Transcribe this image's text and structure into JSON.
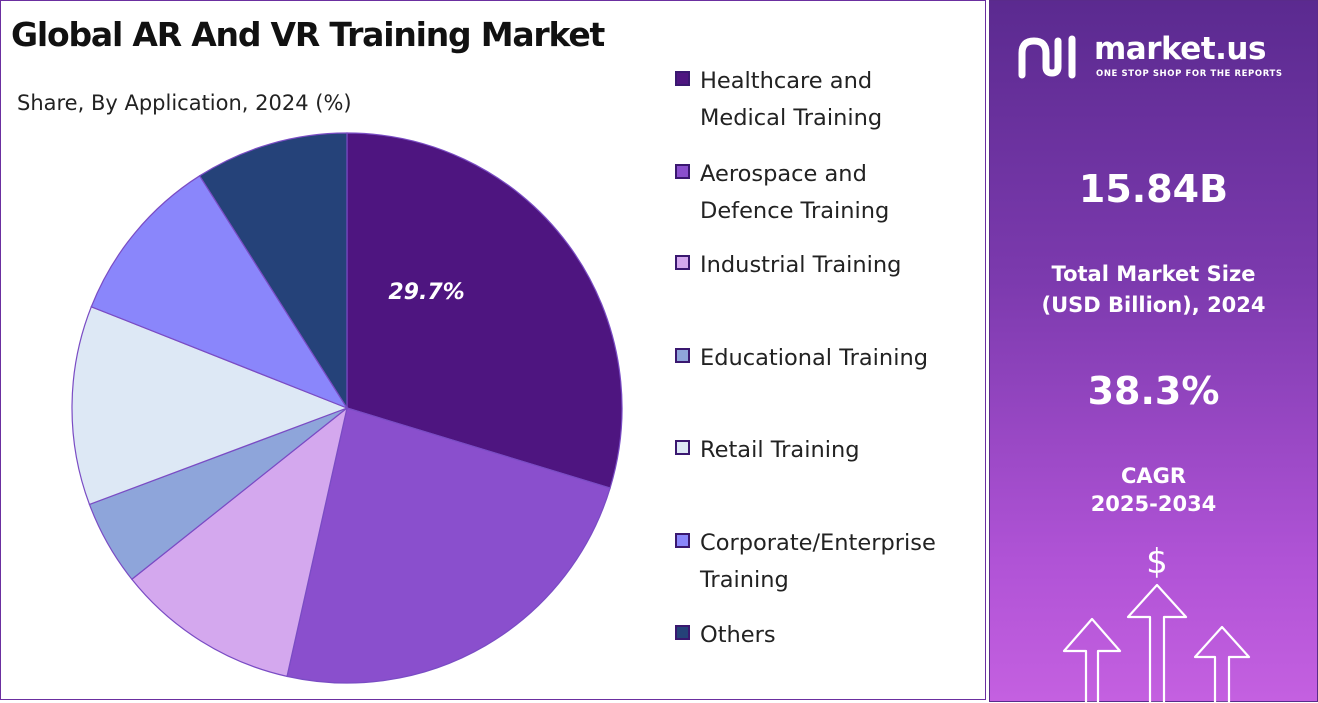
{
  "title": "Global AR And VR Training Market",
  "subtitle": "Share, By Application, 2024 (%)",
  "chart_data": {
    "type": "pie",
    "title": "Global AR And VR Training Market",
    "subtitle": "Share, By Application, 2024 (%)",
    "categories": [
      "Healthcare and Medical Training",
      "Aerospace and Defence Training",
      "Industrial Training",
      "Educational Training",
      "Retail Training",
      "Corporate/Enterprise Training",
      "Others"
    ],
    "values": [
      29.7,
      23.8,
      10.8,
      5.0,
      11.7,
      10.0,
      9.0
    ],
    "colors": [
      "#4e1580",
      "#8a4fcd",
      "#d4a8ee",
      "#8ea5da",
      "#dde8f5",
      "#8a86fb",
      "#254279"
    ],
    "data_labels": [
      "29.7%",
      "",
      "",
      "",
      "",
      "",
      ""
    ],
    "legend_position": "right"
  },
  "right_panel": {
    "brand_name": "market.us",
    "brand_tagline": "ONE STOP SHOP FOR THE REPORTS",
    "market_size_value": "15.84B",
    "market_size_label": "Total Market Size (USD Billion), 2024",
    "cagr_value": "38.3%",
    "cagr_label": "CAGR",
    "cagr_period": "2025-2034",
    "currency_symbol": "$",
    "logo_icon": "market-us-logo-icon",
    "decor_icon": "growth-arrows-icon"
  }
}
